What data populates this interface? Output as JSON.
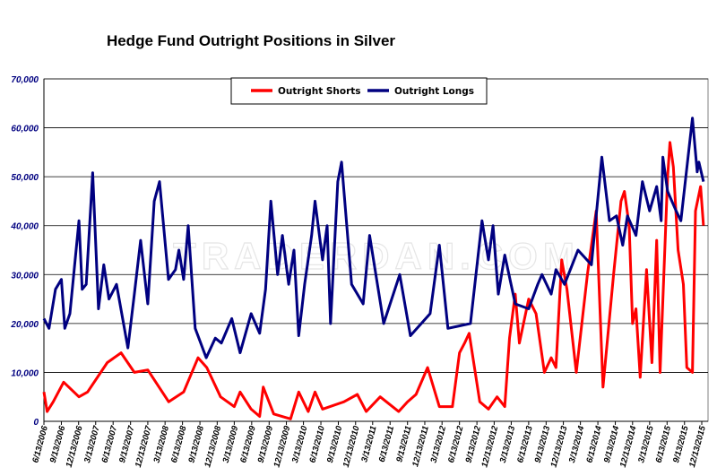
{
  "chart_data": {
    "type": "line",
    "title": "Hedge Fund Outright Positions in Silver",
    "xlabel": "",
    "ylabel": "",
    "ylim": [
      0,
      70000
    ],
    "y_ticks": [
      "0",
      "10,000",
      "20,000",
      "30,000",
      "40,000",
      "50,000",
      "60,000",
      "70,000"
    ],
    "y_tick_values": [
      0,
      10000,
      20000,
      30000,
      40000,
      50000,
      60000,
      70000
    ],
    "grid": "horizontal",
    "legend_position": "top-center",
    "watermark": "TRADERDAN.COM",
    "x_ticks": [
      "6/13/2006",
      "9/13/2006",
      "12/13/2006",
      "3/13/2007",
      "6/13/2007",
      "9/13/2007",
      "12/13/2007",
      "3/13/2008",
      "6/13/2008",
      "9/13/2008",
      "12/13/2008",
      "3/13/2009",
      "6/13/2009",
      "9/13/2009",
      "12/13/2009",
      "3/13/2010",
      "6/13/2010",
      "9/13/2010",
      "12/13/2010",
      "3/13/2011",
      "6/13/2011",
      "9/13/2011",
      "12/13/2011",
      "3/13/2012",
      "6/13/2012",
      "9/13/2012",
      "12/13/2012",
      "3/13/2013",
      "6/13/2013",
      "9/13/2013",
      "12/13/2013",
      "3/13/2014",
      "6/13/2014",
      "9/13/2014",
      "12/13/2014",
      "3/13/2015",
      "6/13/2015",
      "9/13/2015",
      "12/13/2015"
    ],
    "series": [
      {
        "name": "Outright Shorts",
        "color": "#ff0000",
        "points": [
          [
            "2006-06-13",
            6000
          ],
          [
            "2006-06-30",
            2000
          ],
          [
            "2006-08-01",
            4000
          ],
          [
            "2006-09-25",
            8000
          ],
          [
            "2006-12-15",
            5000
          ],
          [
            "2007-01-29",
            6000
          ],
          [
            "2007-05-13",
            12000
          ],
          [
            "2007-07-25",
            14000
          ],
          [
            "2007-10-03",
            10000
          ],
          [
            "2007-12-13",
            10500
          ],
          [
            "2008-04-01",
            4000
          ],
          [
            "2008-06-19",
            6000
          ],
          [
            "2008-09-03",
            13000
          ],
          [
            "2008-10-19",
            11000
          ],
          [
            "2008-12-31",
            5000
          ],
          [
            "2009-03-13",
            3000
          ],
          [
            "2009-04-13",
            6000
          ],
          [
            "2009-06-10",
            2500
          ],
          [
            "2009-07-25",
            1000
          ],
          [
            "2009-08-13",
            7000
          ],
          [
            "2009-10-07",
            1500
          ],
          [
            "2010-01-04",
            500
          ],
          [
            "2010-02-16",
            6000
          ],
          [
            "2010-04-07",
            2000
          ],
          [
            "2010-05-13",
            6000
          ],
          [
            "2010-06-22",
            2500
          ],
          [
            "2010-10-13",
            4000
          ],
          [
            "2010-12-22",
            5500
          ],
          [
            "2011-02-07",
            2000
          ],
          [
            "2011-04-22",
            5000
          ],
          [
            "2011-07-28",
            2000
          ],
          [
            "2011-09-13",
            4000
          ],
          [
            "2011-10-28",
            5500
          ],
          [
            "2011-12-28",
            11000
          ],
          [
            "2012-02-28",
            3000
          ],
          [
            "2012-05-07",
            3000
          ],
          [
            "2012-06-13",
            14000
          ],
          [
            "2012-07-10",
            16000
          ],
          [
            "2012-08-03",
            18000
          ],
          [
            "2012-09-28",
            4000
          ],
          [
            "2012-11-13",
            2500
          ],
          [
            "2012-12-28",
            5000
          ],
          [
            "2013-02-07",
            3000
          ],
          [
            "2013-03-04",
            17000
          ],
          [
            "2013-04-03",
            26000
          ],
          [
            "2013-04-25",
            16000
          ],
          [
            "2013-06-13",
            25000
          ],
          [
            "2013-07-22",
            22000
          ],
          [
            "2013-09-04",
            10000
          ],
          [
            "2013-10-10",
            13000
          ],
          [
            "2013-11-04",
            11000
          ],
          [
            "2013-12-04",
            33000
          ],
          [
            "2014-01-01",
            27000
          ],
          [
            "2014-02-19",
            10000
          ],
          [
            "2014-04-19",
            30000
          ],
          [
            "2014-06-04",
            43000
          ],
          [
            "2014-07-10",
            7000
          ],
          [
            "2014-09-04",
            30000
          ],
          [
            "2014-10-13",
            45000
          ],
          [
            "2014-10-31",
            47000
          ],
          [
            "2014-11-25",
            40000
          ],
          [
            "2014-12-13",
            20000
          ],
          [
            "2014-12-31",
            23000
          ],
          [
            "2015-01-22",
            9000
          ],
          [
            "2015-02-25",
            31000
          ],
          [
            "2015-03-25",
            12000
          ],
          [
            "2015-04-19",
            37000
          ],
          [
            "2015-05-07",
            10000
          ],
          [
            "2015-06-16",
            50000
          ],
          [
            "2015-06-28",
            57000
          ],
          [
            "2015-07-16",
            52000
          ],
          [
            "2015-08-10",
            35000
          ],
          [
            "2015-09-07",
            28000
          ],
          [
            "2015-09-25",
            11000
          ],
          [
            "2015-10-25",
            10000
          ],
          [
            "2015-11-10",
            43000
          ],
          [
            "2015-12-07",
            48000
          ],
          [
            "2015-12-22",
            40000
          ]
        ]
      },
      {
        "name": "Outright Longs",
        "color": "#000080",
        "points": [
          [
            "2006-06-13",
            21000
          ],
          [
            "2006-07-10",
            19000
          ],
          [
            "2006-08-13",
            27000
          ],
          [
            "2006-09-13",
            29000
          ],
          [
            "2006-10-01",
            19000
          ],
          [
            "2006-10-28",
            22000
          ],
          [
            "2006-12-15",
            41000
          ],
          [
            "2007-01-01",
            27000
          ],
          [
            "2007-01-22",
            28000
          ],
          [
            "2007-02-25",
            50800
          ],
          [
            "2007-03-28",
            23000
          ],
          [
            "2007-04-25",
            32000
          ],
          [
            "2007-05-22",
            25000
          ],
          [
            "2007-07-01",
            28000
          ],
          [
            "2007-08-30",
            15000
          ],
          [
            "2007-10-03",
            26000
          ],
          [
            "2007-11-05",
            37000
          ],
          [
            "2007-12-13",
            24000
          ],
          [
            "2008-01-16",
            45000
          ],
          [
            "2008-02-13",
            49000
          ],
          [
            "2008-03-31",
            29000
          ],
          [
            "2008-05-07",
            31000
          ],
          [
            "2008-05-25",
            35000
          ],
          [
            "2008-06-19",
            29000
          ],
          [
            "2008-07-13",
            40000
          ],
          [
            "2008-08-19",
            19000
          ],
          [
            "2008-10-16",
            13000
          ],
          [
            "2008-12-03",
            17000
          ],
          [
            "2009-01-04",
            16000
          ],
          [
            "2009-02-28",
            21000
          ],
          [
            "2009-04-13",
            14000
          ],
          [
            "2009-06-10",
            22000
          ],
          [
            "2009-07-25",
            18000
          ],
          [
            "2009-08-25",
            27000
          ],
          [
            "2009-09-22",
            45000
          ],
          [
            "2009-10-28",
            30000
          ],
          [
            "2009-11-22",
            38000
          ],
          [
            "2009-12-25",
            28000
          ],
          [
            "2010-01-22",
            35000
          ],
          [
            "2010-02-16",
            17500
          ],
          [
            "2010-03-19",
            28000
          ],
          [
            "2010-04-25",
            38000
          ],
          [
            "2010-05-13",
            45000
          ],
          [
            "2010-06-22",
            33000
          ],
          [
            "2010-07-16",
            40000
          ],
          [
            "2010-08-03",
            20000
          ],
          [
            "2010-09-10",
            49000
          ],
          [
            "2010-09-30",
            53000
          ],
          [
            "2010-11-22",
            28000
          ],
          [
            "2011-01-22",
            24000
          ],
          [
            "2011-02-25",
            38000
          ],
          [
            "2011-05-10",
            20000
          ],
          [
            "2011-08-03",
            30000
          ],
          [
            "2011-09-28",
            17500
          ],
          [
            "2012-01-10",
            22000
          ],
          [
            "2012-02-28",
            36000
          ],
          [
            "2012-04-13",
            19000
          ],
          [
            "2012-08-10",
            20000
          ],
          [
            "2012-10-10",
            41000
          ],
          [
            "2012-11-13",
            33000
          ],
          [
            "2012-12-07",
            40000
          ],
          [
            "2013-01-04",
            26000
          ],
          [
            "2013-02-07",
            34000
          ],
          [
            "2013-04-03",
            24000
          ],
          [
            "2013-06-13",
            23000
          ],
          [
            "2013-07-31",
            28000
          ],
          [
            "2013-08-22",
            30000
          ],
          [
            "2013-10-10",
            26000
          ],
          [
            "2013-11-04",
            31000
          ],
          [
            "2013-12-19",
            28000
          ],
          [
            "2014-02-28",
            35000
          ],
          [
            "2014-05-10",
            32000
          ],
          [
            "2014-07-04",
            54000
          ],
          [
            "2014-08-13",
            41000
          ],
          [
            "2014-09-19",
            42000
          ],
          [
            "2014-10-22",
            36000
          ],
          [
            "2014-11-16",
            42000
          ],
          [
            "2014-12-31",
            38000
          ],
          [
            "2015-02-03",
            49000
          ],
          [
            "2015-03-13",
            43000
          ],
          [
            "2015-04-19",
            48000
          ],
          [
            "2015-05-13",
            41000
          ],
          [
            "2015-05-22",
            54000
          ],
          [
            "2015-06-16",
            47000
          ],
          [
            "2015-07-31",
            43000
          ],
          [
            "2015-08-25",
            41000
          ],
          [
            "2015-10-25",
            62000
          ],
          [
            "2015-11-19",
            51000
          ],
          [
            "2015-11-28",
            53000
          ],
          [
            "2015-12-22",
            49000
          ]
        ]
      }
    ]
  }
}
